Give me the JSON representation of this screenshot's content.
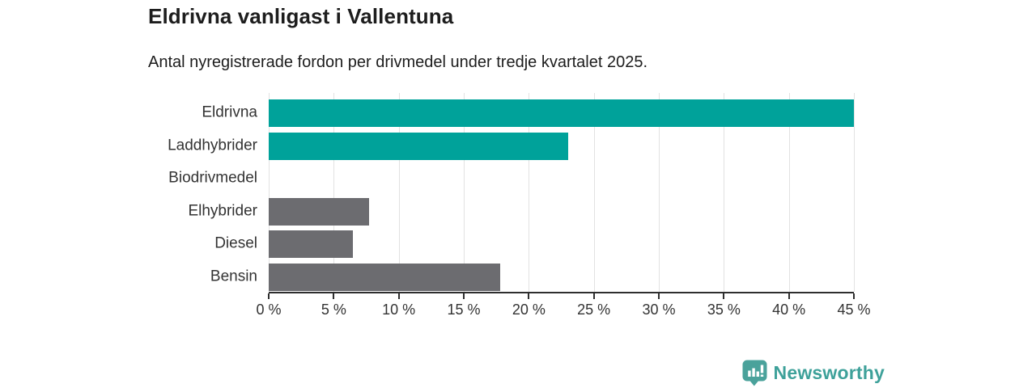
{
  "header": {
    "title": "Eldrivna vanligast i Vallentuna",
    "subtitle": "Antal nyregistrerade fordon per drivmedel under tredje kvartalet 2025."
  },
  "chart_data": {
    "type": "bar",
    "orientation": "horizontal",
    "title": "Eldrivna vanligast i Vallentuna",
    "subtitle": "Antal nyregistrerade fordon per drivmedel under tredje kvartalet 2025.",
    "categories": [
      "Eldrivna",
      "Laddhybrider",
      "Biodrivmedel",
      "Elhybrider",
      "Diesel",
      "Bensin"
    ],
    "values": [
      45,
      23,
      0,
      7.7,
      6.5,
      17.8
    ],
    "unit": "%",
    "bar_colors": [
      "#00a29a",
      "#00a29a",
      "#00a29a",
      "#6c6c70",
      "#6c6c70",
      "#6c6c70"
    ],
    "xlim": [
      0,
      45
    ],
    "xticks": [
      0,
      5,
      10,
      15,
      20,
      25,
      30,
      35,
      40,
      45
    ],
    "xtick_suffix": " %",
    "grid": true,
    "legend": false,
    "data_labels": false
  },
  "colors": {
    "bar_teal": "#00a29a",
    "bar_gray": "#6c6c70",
    "gridline": "#e2e2e2",
    "axis": "#2e2e2e",
    "title_text": "#1d1d1d",
    "tick_text": "#333333",
    "brand_teal": "#3ea19a"
  },
  "footer": {
    "brand": "Newsworthy"
  }
}
